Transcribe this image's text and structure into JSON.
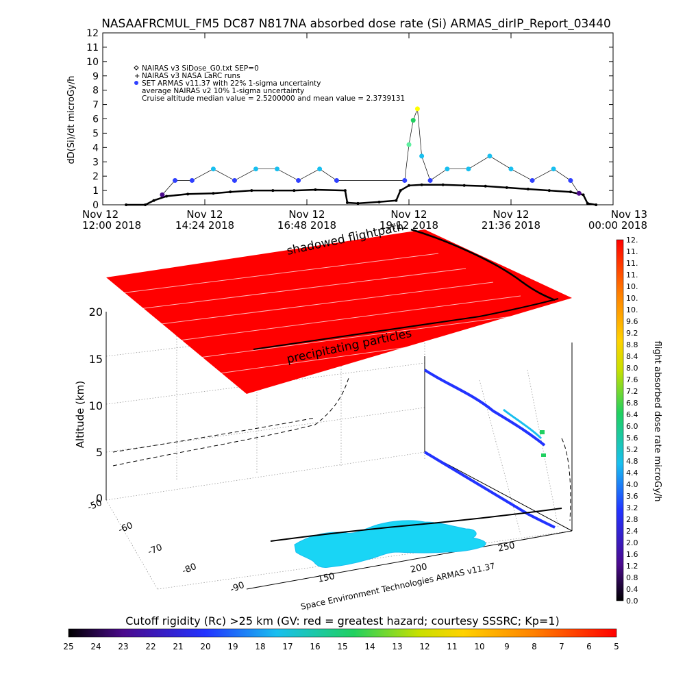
{
  "title": "NASAAFRCMUL_FM5 DC87 N817NA absorbed dose rate (Si) ARMAS_dirIP_Report_03440",
  "colors": {
    "armas_blue": "#2f40ff",
    "armas_cyan": "#19bfef",
    "hazard_red": "#ff0000",
    "nairas_black": "#000000"
  },
  "chart_data": [
    {
      "type": "line",
      "panel": "dose-rate timeline",
      "ylabel": "dD(Si)/dt microGy/h",
      "ylim": [
        0,
        12
      ],
      "y_ticks": [
        "0",
        "1",
        "2",
        "3",
        "4",
        "5",
        "6",
        "7",
        "8",
        "9",
        "10",
        "11",
        "12"
      ],
      "x_ticks": [
        {
          "line1": "Nov 12",
          "line2": "12:00 2018"
        },
        {
          "line1": "Nov 12",
          "line2": "14:24 2018"
        },
        {
          "line1": "Nov 12",
          "line2": "16:48 2018"
        },
        {
          "line1": "Nov 12",
          "line2": "19:12 2018"
        },
        {
          "line1": "Nov 12",
          "line2": "21:36 2018"
        },
        {
          "line1": "Nov 13",
          "line2": "00:00 2018"
        }
      ],
      "xlim_hours": [
        12,
        24
      ],
      "legend": [
        "NAIRAS v3 SiDose_G0.txt SEP=0",
        "NAIRAS v3 NASA LaRC runs",
        "SET ARMAS v11.37 with 22% 1-sigma uncertainty",
        "average NAIRAS v2 10% 1-sigma uncertainty",
        "Cruise altitude median value = 2.5200000 and mean value = 2.3739131"
      ],
      "legend_position": "top-left",
      "series": [
        {
          "name": "NAIRAS v3 SiDose_G0.txt SEP=0",
          "x": [
            12.55,
            13.0,
            13.2,
            13.5,
            14.0,
            14.6,
            15.0,
            15.5,
            16.0,
            16.5,
            17.0,
            17.7,
            17.75,
            18.0,
            18.5,
            18.9,
            19.0,
            19.2,
            19.5,
            20.0,
            20.5,
            21.0,
            21.5,
            22.0,
            22.5,
            23.0,
            23.3,
            23.4,
            23.6
          ],
          "y": [
            0.0,
            0.0,
            0.3,
            0.6,
            0.75,
            0.8,
            0.9,
            1.0,
            1.0,
            1.0,
            1.05,
            1.0,
            0.15,
            0.1,
            0.2,
            0.3,
            1.0,
            1.35,
            1.4,
            1.4,
            1.35,
            1.3,
            1.2,
            1.1,
            1.0,
            0.9,
            0.7,
            0.1,
            0.0
          ]
        },
        {
          "name": "SET ARMAS v11.37 with 22% 1-sigma uncertainty",
          "x": [
            13.4,
            13.7,
            14.1,
            14.6,
            15.1,
            15.6,
            16.1,
            16.6,
            17.1,
            17.5,
            19.1,
            19.2,
            19.3,
            19.4,
            19.5,
            19.7,
            20.1,
            20.6,
            21.1,
            21.6,
            22.1,
            22.6,
            23.0,
            23.2
          ],
          "y": [
            0.7,
            1.7,
            1.7,
            2.5,
            1.7,
            2.5,
            2.5,
            1.7,
            2.5,
            1.7,
            1.7,
            4.2,
            5.9,
            6.7,
            3.4,
            1.7,
            2.5,
            2.5,
            3.4,
            2.5,
            1.7,
            2.5,
            1.7,
            0.8
          ]
        }
      ]
    },
    {
      "type": "scatter",
      "panel": "3D flight path",
      "zlabel": "Altitude (km)",
      "z_ticks": [
        "0",
        "5",
        "10",
        "15",
        "20"
      ],
      "lat_ticks": [
        "-50",
        "-60",
        "-70",
        "-80",
        "-90"
      ],
      "lon_ticks": [
        "150",
        "200",
        "250"
      ],
      "annotations": [
        "shadowed flightpath",
        "precipitating particles"
      ],
      "credit": "Space Environment Technologies ARMAS v11.37"
    }
  ],
  "colorbars": {
    "vertical": {
      "label": "flight absorbed dose rate microGy/h",
      "ticks": [
        "12.",
        "11.",
        "11.",
        "11.",
        "10.",
        "10.",
        "10.",
        "9.6",
        "9.2",
        "8.8",
        "8.4",
        "8.0",
        "7.6",
        "7.2",
        "6.8",
        "6.4",
        "6.0",
        "5.6",
        "5.2",
        "4.8",
        "4.4",
        "4.0",
        "3.6",
        "3.2",
        "2.8",
        "2.4",
        "2.0",
        "1.6",
        "1.2",
        "0.8",
        "0.4",
        "0.0"
      ]
    },
    "horizontal": {
      "label": "Cutoff rigidity (Rc) >25 km (GV: red = greatest hazard; courtesy SSSRC; Kp=1)",
      "ticks": [
        "25",
        "24",
        "23",
        "22",
        "21",
        "20",
        "19",
        "18",
        "17",
        "16",
        "15",
        "14",
        "13",
        "12",
        "11",
        "10",
        "9",
        "8",
        "7",
        "6",
        "5"
      ]
    }
  }
}
